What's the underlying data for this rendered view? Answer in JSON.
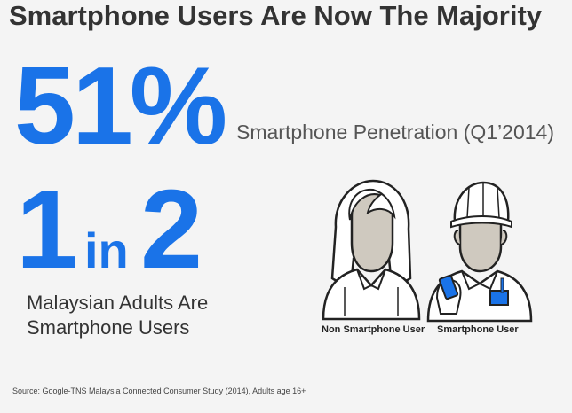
{
  "title": "Smartphone Users Are Now The Majority",
  "stat1": {
    "value": "51%",
    "label": "Smartphone Penetration (Q1’2014)"
  },
  "stat2": {
    "one": "1",
    "in": "in",
    "two": "2",
    "label_line1": "Malaysian Adults Are",
    "label_line2": "Smartphone Users"
  },
  "figures": {
    "non_user_label": "Non Smartphone User",
    "user_label": "Smartphone User"
  },
  "source": "Source: Google-TNS Malaysia Connected Consumer Study (2014), Adults age 16+",
  "colors": {
    "accent": "#1a73e8",
    "text": "#333333",
    "figure_fill": "#cfc9bf"
  }
}
